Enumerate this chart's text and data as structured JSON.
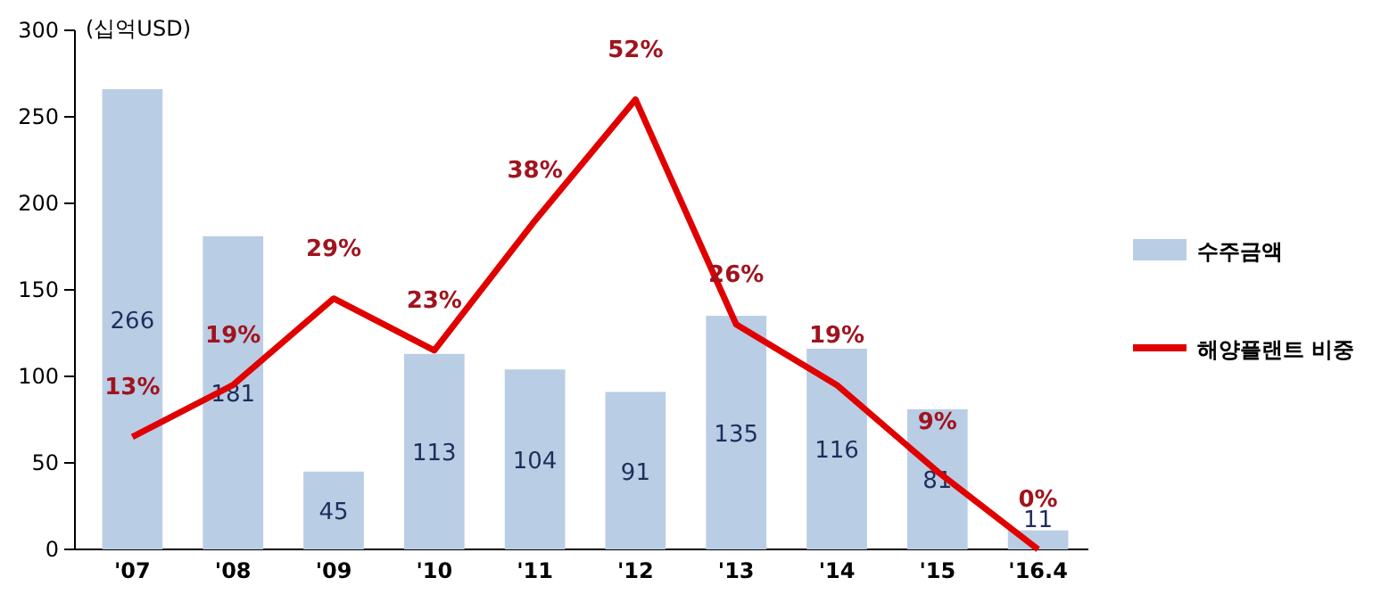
{
  "chart_data": {
    "type": "bar",
    "ylabel": "(십억USD)",
    "categories": [
      "'07",
      "'08",
      "'09",
      "'10",
      "'11",
      "'12",
      "'13",
      "'14",
      "'15",
      "'16.4"
    ],
    "ylim": [
      0,
      300
    ],
    "yticks": [
      0,
      50,
      100,
      150,
      200,
      250,
      300
    ],
    "y2lim": [
      0,
      60
    ],
    "grid": false,
    "legend": "right",
    "marker": "none",
    "line_style": "solid",
    "series": [
      {
        "name": "수주금액",
        "color": "#b9cde5",
        "values": [
          266,
          181,
          45,
          113,
          104,
          91,
          135,
          116,
          81,
          11
        ],
        "value_labels": [
          "266",
          "181",
          "45",
          "113",
          "104",
          "91",
          "135",
          "116",
          "81",
          "11"
        ]
      },
      {
        "name": "해양플랜트 비중",
        "type": "line",
        "axis": "y2",
        "color": "#e00000",
        "values": [
          13,
          19,
          29,
          23,
          38,
          52,
          26,
          19,
          9,
          0
        ],
        "value_labels": [
          "13%",
          "19%",
          "29%",
          "23%",
          "38%",
          "52%",
          "26%",
          "19%",
          "9%",
          "0%"
        ]
      }
    ]
  }
}
